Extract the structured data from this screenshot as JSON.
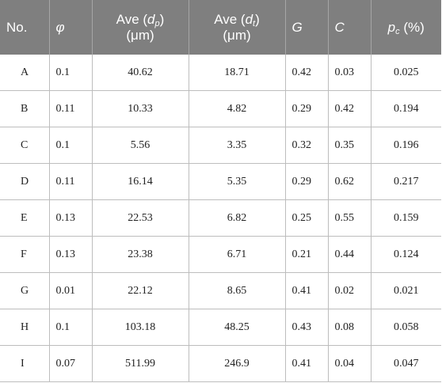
{
  "headers": {
    "no": "No.",
    "phi": "φ",
    "ave_dp": {
      "pre": "Ave (",
      "var": "d",
      "sub": "p",
      "post": ")",
      "unit": "(μm)"
    },
    "ave_dt": {
      "pre": "Ave (",
      "var": "d",
      "sub": "t",
      "post": ")",
      "unit": "(μm)"
    },
    "g": "G",
    "c": "C",
    "pc": {
      "var": "p",
      "sub": "c",
      "post": " (%)"
    }
  },
  "rows": [
    [
      "A",
      "0.1",
      "40.62",
      "18.71",
      "0.42",
      "0.03",
      "0.025"
    ],
    [
      "B",
      "0.11",
      "10.33",
      "4.82",
      "0.29",
      "0.42",
      "0.194"
    ],
    [
      "C",
      "0.1",
      "5.56",
      "3.35",
      "0.32",
      "0.35",
      "0.196"
    ],
    [
      "D",
      "0.11",
      "16.14",
      "5.35",
      "0.29",
      "0.62",
      "0.217"
    ],
    [
      "E",
      "0.13",
      "22.53",
      "6.82",
      "0.25",
      "0.55",
      "0.159"
    ],
    [
      "F",
      "0.13",
      "23.38",
      "6.71",
      "0.21",
      "0.44",
      "0.124"
    ],
    [
      "G",
      "0.01",
      "22.12",
      "8.65",
      "0.41",
      "0.02",
      "0.021"
    ],
    [
      "H",
      "0.1",
      "103.18",
      "48.25",
      "0.43",
      "0.08",
      "0.058"
    ],
    [
      "I",
      "0.07",
      "511.99",
      "246.9",
      "0.41",
      "0.04",
      "0.047"
    ]
  ],
  "colors": {
    "header_bg": "#7f7f7f",
    "header_text": "#ffffff",
    "grid": "#bdbdbd"
  }
}
